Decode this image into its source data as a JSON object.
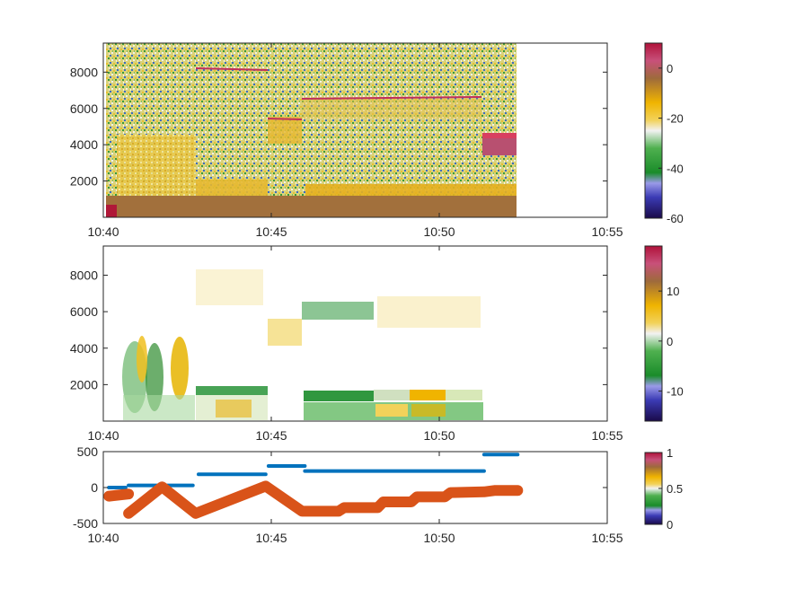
{
  "colors": {
    "series_blue": "#0072bd",
    "series_orange": "#d95319"
  },
  "chart_data": [
    {
      "type": "heatmap",
      "x_ticks": [
        "10:40",
        "10:45",
        "10:50",
        "10:55"
      ],
      "xlim": [
        "10:40",
        "10:55"
      ],
      "y_ticks": [
        "2000",
        "4000",
        "6000",
        "8000"
      ],
      "ylim": [
        0,
        9600
      ],
      "colorbar": {
        "ticks": [
          "0",
          "-20",
          "-40",
          "-60"
        ],
        "clim": [
          -60,
          10
        ]
      }
    },
    {
      "type": "heatmap",
      "x_ticks": [
        "10:40",
        "10:45",
        "10:50",
        "10:55"
      ],
      "xlim": [
        "10:40",
        "10:55"
      ],
      "y_ticks": [
        "2000",
        "4000",
        "6000",
        "8000"
      ],
      "ylim": [
        0,
        9600
      ],
      "colorbar": {
        "ticks": [
          "10",
          "0",
          "-10"
        ],
        "clim": [
          -16,
          19
        ]
      }
    },
    {
      "type": "scatter",
      "x_ticks": [
        "10:40",
        "10:45",
        "10:50",
        "10:55"
      ],
      "xlim": [
        "10:40",
        "10:55"
      ],
      "y_ticks": [
        "500",
        "0",
        "-500"
      ],
      "ylim": [
        -500,
        500
      ],
      "colorbar": {
        "ticks": [
          "1",
          "0.5",
          "0"
        ],
        "clim": [
          0,
          1
        ]
      },
      "series": [
        {
          "color": "#0072bd",
          "segments": [
            [
              [
                "10:40:10",
                0
              ],
              [
                "10:40:40",
                0
              ]
            ],
            [
              [
                "10:40:45",
                30
              ],
              [
                "10:42:40",
                30
              ]
            ],
            [
              [
                "10:42:50",
                185
              ],
              [
                "10:44:50",
                185
              ]
            ],
            [
              [
                "10:44:55",
                300
              ],
              [
                "10:46:00",
                300
              ]
            ],
            [
              [
                "10:46:00",
                230
              ],
              [
                "10:51:20",
                230
              ]
            ],
            [
              [
                "10:51:20",
                460
              ],
              [
                "10:52:20",
                460
              ]
            ]
          ]
        },
        {
          "color": "#d95319",
          "segments": [
            [
              [
                "10:40:10",
                -120
              ],
              [
                "10:40:45",
                -90
              ]
            ],
            [
              [
                "10:40:45",
                -360
              ],
              [
                "10:41:45",
                10
              ],
              [
                "10:42:45",
                -360
              ],
              [
                "10:44:50",
                20
              ],
              [
                "10:45:55",
                -330
              ],
              [
                "10:47:00",
                -330
              ],
              [
                "10:47:10",
                -280
              ],
              [
                "10:48:10",
                -280
              ],
              [
                "10:48:20",
                -200
              ],
              [
                "10:49:10",
                -200
              ],
              [
                "10:49:20",
                -130
              ],
              [
                "10:50:10",
                -130
              ],
              [
                "10:50:20",
                -70
              ],
              [
                "10:51:20",
                -60
              ],
              [
                "10:51:40",
                -40
              ],
              [
                "10:52:20",
                -40
              ]
            ]
          ]
        }
      ]
    }
  ]
}
